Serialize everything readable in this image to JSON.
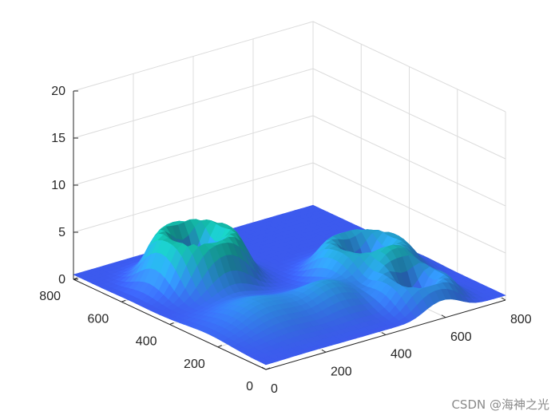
{
  "chart_data": {
    "type": "surface",
    "title": "",
    "xlabel": "",
    "ylabel": "",
    "zlabel": "",
    "xlim": [
      0,
      800
    ],
    "ylim": [
      0,
      800
    ],
    "zlim": [
      0,
      20
    ],
    "x_ticks": [
      "0",
      "200",
      "400",
      "600",
      "800"
    ],
    "y_ticks": [
      "0",
      "200",
      "400",
      "600",
      "800"
    ],
    "z_ticks": [
      "0",
      "5",
      "10",
      "15",
      "20"
    ],
    "grid": true,
    "colormap": "parula",
    "colors": {
      "low": "#3f4ff0",
      "mid": "#2f8ce6",
      "high": "#14b8a8"
    },
    "base_level": 0.5,
    "features": [
      {
        "kind": "ring-crater",
        "x": 220,
        "y": 560,
        "sigma": 110,
        "peak": 5.5
      },
      {
        "kind": "ring-crater",
        "x": 600,
        "y": 330,
        "sigma": 110,
        "peak": 3.6
      },
      {
        "kind": "ring-crater",
        "x": 590,
        "y": 110,
        "sigma": 90,
        "peak": 2.6
      },
      {
        "kind": "hill",
        "x": 170,
        "y": 240,
        "sigma": 90,
        "peak": 2.4
      },
      {
        "kind": "hill",
        "x": 380,
        "y": 210,
        "sigma": 70,
        "peak": 2.7
      }
    ]
  },
  "watermark": "CSDN @海神之光"
}
